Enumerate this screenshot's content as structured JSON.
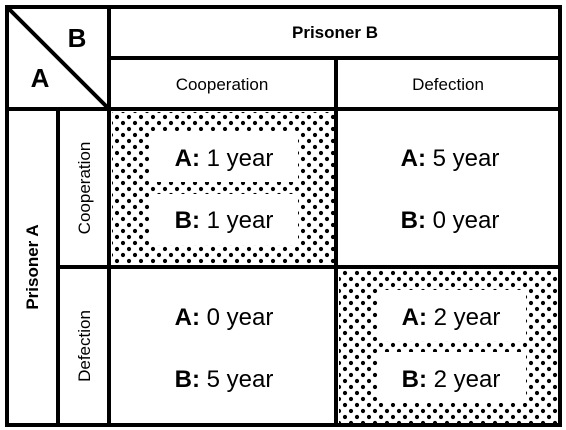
{
  "corner": {
    "top_right": "B",
    "bottom_left": "A"
  },
  "column_player": "Prisoner B",
  "row_player": "Prisoner A",
  "columns": [
    "Cooperation",
    "Defection"
  ],
  "rows": [
    "Cooperation",
    "Defection"
  ],
  "cells": [
    [
      {
        "a_label": "A:",
        "a_value": " 1 year",
        "b_label": "B:",
        "b_value": " 1 year",
        "highlighted": true
      },
      {
        "a_label": "A:",
        "a_value": " 5 year",
        "b_label": "B:",
        "b_value": " 0 year",
        "highlighted": false
      }
    ],
    [
      {
        "a_label": "A:",
        "a_value": " 0 year",
        "b_label": "B:",
        "b_value": " 5 year",
        "highlighted": false
      },
      {
        "a_label": "A:",
        "a_value": " 2 year",
        "b_label": "B:",
        "b_value": " 2 year",
        "highlighted": true
      }
    ]
  ],
  "colors": {
    "line": "#000000",
    "background": "#ffffff",
    "dots": "#000000"
  }
}
